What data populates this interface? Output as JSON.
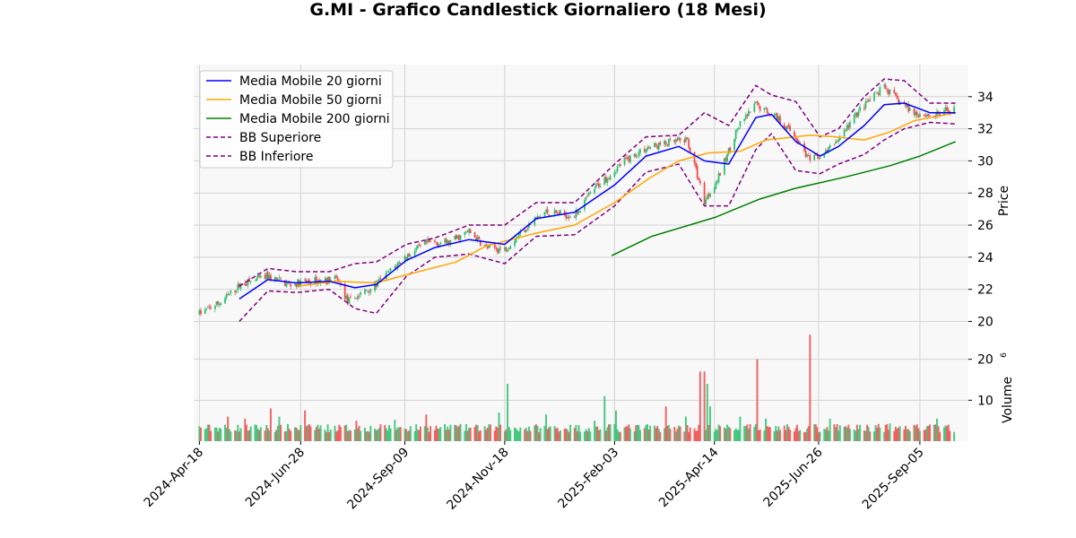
{
  "title": "G.MI - Grafico Candlestick Giornaliero (18 Mesi)",
  "colors": {
    "up": "#2fbf71",
    "down": "#ef4c4c",
    "ma20": "#0000ff",
    "ma50": "#ffa500",
    "ma200": "#008000",
    "bb": "#800080",
    "panel_bg": "#f8f8f8",
    "grid": "#d3d3d3"
  },
  "chart_data": {
    "type": "candlestick",
    "title": "G.MI - Grafico Candlestick Giornaliero (18 Mesi)",
    "ylabel": "Price",
    "volume_label": "Volume",
    "volume_exponent": "6",
    "ylim": [
      19.3,
      36.0
    ],
    "volume_ylim": [
      0,
      26.5
    ],
    "yticks": [
      20,
      22,
      24,
      26,
      28,
      30,
      32,
      34
    ],
    "volume_yticks": [
      10,
      20
    ],
    "xlim": [
      "2024-04-14",
      "2025-10-09"
    ],
    "xticks": [
      "2024-Apr-18",
      "2024-Jun-28",
      "2024-Sep-09",
      "2024-Nov-18",
      "2025-Feb-03",
      "2025-Apr-14",
      "2025-Jun-26",
      "2025-Sep-05"
    ],
    "xtick_dates": [
      "2024-04-18",
      "2024-06-28",
      "2024-09-09",
      "2024-11-18",
      "2025-02-03",
      "2025-04-14",
      "2025-06-26",
      "2025-09-05"
    ],
    "grid": true,
    "legend_position": "top-left",
    "legend": [
      "Media Mobile 20 giorni",
      "Media Mobile 50 giorni",
      "Media Mobile 200 giorni",
      "BB Superiore",
      "BB Inferiore"
    ],
    "price_anchors": [
      [
        "2024-04-18",
        20.5
      ],
      [
        "2024-05-03",
        21.2
      ],
      [
        "2024-05-17",
        22.3
      ],
      [
        "2024-06-05",
        22.8
      ],
      [
        "2024-06-20",
        22.3
      ],
      [
        "2024-07-05",
        22.5
      ],
      [
        "2024-07-24",
        22.6
      ],
      [
        "2024-07-31",
        21.2
      ],
      [
        "2024-08-20",
        22.3
      ],
      [
        "2024-09-09",
        24.0
      ],
      [
        "2024-09-25",
        24.9
      ],
      [
        "2024-10-10",
        24.9
      ],
      [
        "2024-10-24",
        25.6
      ],
      [
        "2024-11-05",
        24.6
      ],
      [
        "2024-11-18",
        24.5
      ],
      [
        "2024-12-02",
        25.8
      ],
      [
        "2024-12-16",
        26.8
      ],
      [
        "2025-01-06",
        26.6
      ],
      [
        "2025-01-20",
        28.3
      ],
      [
        "2025-02-10",
        30.0
      ],
      [
        "2025-02-25",
        30.8
      ],
      [
        "2025-03-12",
        31.1
      ],
      [
        "2025-03-26",
        31.3
      ],
      [
        "2025-04-07",
        27.5
      ],
      [
        "2025-04-17",
        29.0
      ],
      [
        "2025-04-30",
        32.0
      ],
      [
        "2025-05-13",
        33.5
      ],
      [
        "2025-05-27",
        32.8
      ],
      [
        "2025-06-10",
        31.5
      ],
      [
        "2025-06-20",
        30.0
      ],
      [
        "2025-07-01",
        30.5
      ],
      [
        "2025-07-11",
        31.5
      ],
      [
        "2025-07-25",
        33.2
      ],
      [
        "2025-08-11",
        34.6
      ],
      [
        "2025-08-20",
        33.8
      ],
      [
        "2025-09-01",
        33.0
      ],
      [
        "2025-09-15",
        32.8
      ],
      [
        "2025-09-29",
        33.3
      ]
    ],
    "ma20": [
      [
        "2024-05-16",
        21.4
      ],
      [
        "2024-06-05",
        22.6
      ],
      [
        "2024-06-25",
        22.4
      ],
      [
        "2024-07-18",
        22.5
      ],
      [
        "2024-08-05",
        22.1
      ],
      [
        "2024-08-20",
        22.3
      ],
      [
        "2024-09-10",
        23.8
      ],
      [
        "2024-09-30",
        24.6
      ],
      [
        "2024-10-24",
        25.1
      ],
      [
        "2024-11-18",
        24.8
      ],
      [
        "2024-12-10",
        26.4
      ],
      [
        "2025-01-06",
        26.8
      ],
      [
        "2025-02-03",
        28.5
      ],
      [
        "2025-02-25",
        30.3
      ],
      [
        "2025-03-20",
        30.9
      ],
      [
        "2025-04-07",
        30.0
      ],
      [
        "2025-04-24",
        29.8
      ],
      [
        "2025-05-13",
        32.7
      ],
      [
        "2025-05-24",
        32.9
      ],
      [
        "2025-06-10",
        31.2
      ],
      [
        "2025-06-27",
        30.3
      ],
      [
        "2025-07-10",
        30.9
      ],
      [
        "2025-07-28",
        32.2
      ],
      [
        "2025-08-11",
        33.5
      ],
      [
        "2025-08-25",
        33.6
      ],
      [
        "2025-09-12",
        33.0
      ],
      [
        "2025-09-30",
        33.0
      ]
    ],
    "ma50": [
      [
        "2024-06-26",
        22.2
      ],
      [
        "2024-07-22",
        22.5
      ],
      [
        "2024-08-20",
        22.4
      ],
      [
        "2024-09-10",
        22.9
      ],
      [
        "2024-10-15",
        23.7
      ],
      [
        "2024-11-05",
        24.7
      ],
      [
        "2024-12-10",
        25.5
      ],
      [
        "2025-01-06",
        26.0
      ],
      [
        "2025-02-03",
        27.4
      ],
      [
        "2025-02-27",
        28.9
      ],
      [
        "2025-03-20",
        30.0
      ],
      [
        "2025-04-10",
        30.5
      ],
      [
        "2025-05-02",
        30.6
      ],
      [
        "2025-05-20",
        31.3
      ],
      [
        "2025-06-20",
        31.6
      ],
      [
        "2025-07-08",
        31.5
      ],
      [
        "2025-07-28",
        31.3
      ],
      [
        "2025-08-15",
        31.8
      ],
      [
        "2025-09-01",
        32.5
      ],
      [
        "2025-09-30",
        33.0
      ]
    ],
    "ma200": [
      [
        "2025-02-01",
        24.1
      ],
      [
        "2025-03-01",
        25.3
      ],
      [
        "2025-04-15",
        26.5
      ],
      [
        "2025-05-15",
        27.6
      ],
      [
        "2025-06-10",
        28.3
      ],
      [
        "2025-07-15",
        29.0
      ],
      [
        "2025-08-15",
        29.7
      ],
      [
        "2025-09-05",
        30.3
      ],
      [
        "2025-09-30",
        31.2
      ]
    ],
    "bb_upper": [
      [
        "2024-05-16",
        22.2
      ],
      [
        "2024-06-05",
        23.3
      ],
      [
        "2024-06-25",
        23.1
      ],
      [
        "2024-07-18",
        23.1
      ],
      [
        "2024-08-05",
        23.6
      ],
      [
        "2024-08-20",
        23.7
      ],
      [
        "2024-09-10",
        24.8
      ],
      [
        "2024-09-30",
        25.2
      ],
      [
        "2024-10-24",
        26.0
      ],
      [
        "2024-11-18",
        26.0
      ],
      [
        "2024-12-10",
        27.4
      ],
      [
        "2025-01-06",
        27.4
      ],
      [
        "2025-02-03",
        29.8
      ],
      [
        "2025-02-25",
        31.5
      ],
      [
        "2025-03-20",
        31.6
      ],
      [
        "2025-04-07",
        33.0
      ],
      [
        "2025-04-24",
        32.2
      ],
      [
        "2025-05-13",
        34.7
      ],
      [
        "2025-05-24",
        34.1
      ],
      [
        "2025-06-10",
        33.7
      ],
      [
        "2025-06-27",
        31.5
      ],
      [
        "2025-07-10",
        32.0
      ],
      [
        "2025-07-28",
        34.0
      ],
      [
        "2025-08-11",
        35.1
      ],
      [
        "2025-08-25",
        35.0
      ],
      [
        "2025-09-12",
        33.6
      ],
      [
        "2025-09-30",
        33.6
      ]
    ],
    "bb_lower": [
      [
        "2024-05-16",
        20.0
      ],
      [
        "2024-06-05",
        21.9
      ],
      [
        "2024-06-25",
        21.8
      ],
      [
        "2024-07-18",
        22.0
      ],
      [
        "2024-08-05",
        20.8
      ],
      [
        "2024-08-20",
        20.5
      ],
      [
        "2024-09-10",
        22.8
      ],
      [
        "2024-09-30",
        24.0
      ],
      [
        "2024-10-24",
        24.2
      ],
      [
        "2024-11-18",
        23.6
      ],
      [
        "2024-12-10",
        25.3
      ],
      [
        "2025-01-06",
        25.4
      ],
      [
        "2025-02-03",
        27.2
      ],
      [
        "2025-02-25",
        29.3
      ],
      [
        "2025-03-20",
        29.8
      ],
      [
        "2025-04-07",
        27.2
      ],
      [
        "2025-04-24",
        27.2
      ],
      [
        "2025-05-13",
        30.7
      ],
      [
        "2025-05-24",
        31.7
      ],
      [
        "2025-06-10",
        29.4
      ],
      [
        "2025-06-27",
        29.2
      ],
      [
        "2025-07-10",
        29.8
      ],
      [
        "2025-07-28",
        30.4
      ],
      [
        "2025-08-11",
        31.3
      ],
      [
        "2025-08-25",
        32.0
      ],
      [
        "2025-09-12",
        32.4
      ],
      [
        "2025-09-30",
        32.3
      ]
    ],
    "volume_spikes": [
      [
        "2024-04-18",
        2.5
      ],
      [
        "2024-05-08",
        6.0
      ],
      [
        "2024-05-20",
        5.5
      ],
      [
        "2024-06-07",
        8.0
      ],
      [
        "2024-06-13",
        6.0
      ],
      [
        "2024-07-01",
        7.5
      ],
      [
        "2024-07-10",
        4.0
      ],
      [
        "2024-08-06",
        5.0
      ],
      [
        "2024-09-02",
        5.2
      ],
      [
        "2024-09-24",
        6.5
      ],
      [
        "2024-10-14",
        4.0
      ],
      [
        "2024-11-14",
        7.0
      ],
      [
        "2024-11-20",
        14.0
      ],
      [
        "2024-12-17",
        6.5
      ],
      [
        "2025-01-20",
        5.0
      ],
      [
        "2025-01-27",
        11.0
      ],
      [
        "2025-02-04",
        7.5
      ],
      [
        "2025-03-11",
        8.5
      ],
      [
        "2025-03-25",
        6.0
      ],
      [
        "2025-04-04",
        17.0
      ],
      [
        "2025-04-07",
        17.0
      ],
      [
        "2025-04-09",
        14.0
      ],
      [
        "2025-04-11",
        8.5
      ],
      [
        "2025-05-02",
        6.0
      ],
      [
        "2025-05-14",
        20.0
      ],
      [
        "2025-05-20",
        5.5
      ],
      [
        "2025-06-20",
        26.0
      ],
      [
        "2025-07-04",
        5.5
      ],
      [
        "2025-07-23",
        4.0
      ],
      [
        "2025-08-07",
        4.2
      ],
      [
        "2025-08-15",
        4.3
      ],
      [
        "2025-09-01",
        4.0
      ],
      [
        "2025-09-17",
        5.5
      ]
    ]
  }
}
